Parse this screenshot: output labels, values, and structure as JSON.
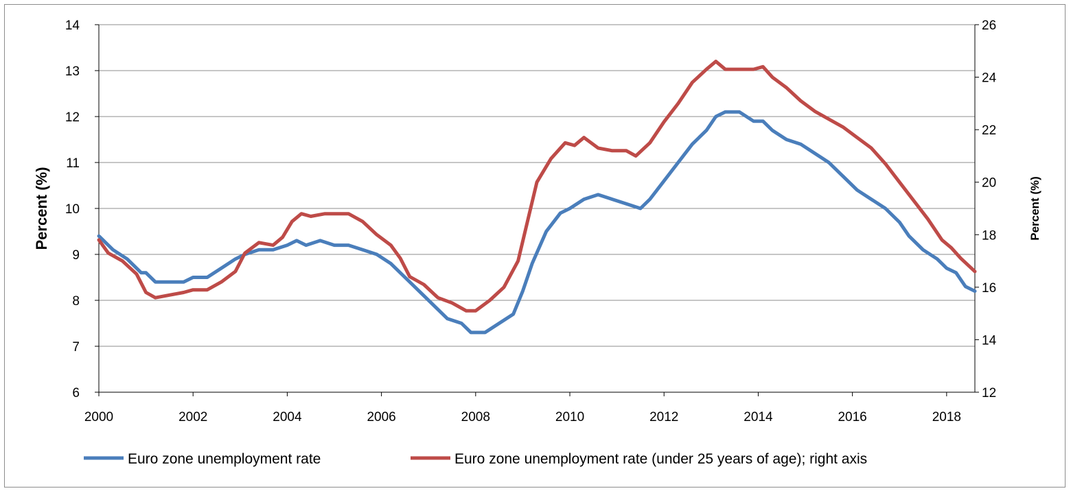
{
  "chart_data": {
    "type": "line",
    "title": "",
    "xlabel": "",
    "ylabel": "Percent (%)",
    "ylabel_right": "Percent (%)",
    "x_ticks": [
      "2000",
      "2002",
      "2004",
      "2006",
      "2008",
      "2010",
      "2012",
      "2014",
      "2016",
      "2018"
    ],
    "xlim": [
      2000,
      2018.6
    ],
    "ylim": [
      6,
      14
    ],
    "y_ticks": [
      "6",
      "7",
      "8",
      "9",
      "10",
      "11",
      "12",
      "13",
      "14"
    ],
    "ylim_right": [
      12,
      26
    ],
    "y_ticks_right": [
      "12",
      "14",
      "16",
      "18",
      "20",
      "22",
      "24",
      "26"
    ],
    "grid": true,
    "legend_position": "bottom",
    "series": [
      {
        "name": "Euro zone unemployment rate",
        "axis": "left",
        "color": "#4a7ebb",
        "x": [
          2000.0,
          2000.3,
          2000.6,
          2000.9,
          2001.0,
          2001.2,
          2001.5,
          2001.8,
          2002.0,
          2002.3,
          2002.6,
          2002.9,
          2003.1,
          2003.4,
          2003.7,
          2004.0,
          2004.2,
          2004.4,
          2004.7,
          2005.0,
          2005.3,
          2005.6,
          2005.9,
          2006.2,
          2006.5,
          2006.8,
          2007.1,
          2007.4,
          2007.7,
          2007.9,
          2008.2,
          2008.5,
          2008.8,
          2009.0,
          2009.2,
          2009.5,
          2009.8,
          2010.0,
          2010.3,
          2010.6,
          2010.9,
          2011.2,
          2011.5,
          2011.7,
          2012.0,
          2012.3,
          2012.6,
          2012.9,
          2013.1,
          2013.3,
          2013.6,
          2013.9,
          2014.1,
          2014.3,
          2014.6,
          2014.9,
          2015.2,
          2015.5,
          2015.8,
          2016.1,
          2016.4,
          2016.7,
          2017.0,
          2017.2,
          2017.5,
          2017.8,
          2018.0,
          2018.2,
          2018.4,
          2018.6
        ],
        "values": [
          9.4,
          9.1,
          8.9,
          8.6,
          8.6,
          8.4,
          8.4,
          8.4,
          8.5,
          8.5,
          8.7,
          8.9,
          9.0,
          9.1,
          9.1,
          9.2,
          9.3,
          9.2,
          9.3,
          9.2,
          9.2,
          9.1,
          9.0,
          8.8,
          8.5,
          8.2,
          7.9,
          7.6,
          7.5,
          7.3,
          7.3,
          7.5,
          7.7,
          8.2,
          8.8,
          9.5,
          9.9,
          10.0,
          10.2,
          10.3,
          10.2,
          10.1,
          10.0,
          10.2,
          10.6,
          11.0,
          11.4,
          11.7,
          12.0,
          12.1,
          12.1,
          11.9,
          11.9,
          11.7,
          11.5,
          11.4,
          11.2,
          11.0,
          10.7,
          10.4,
          10.2,
          10.0,
          9.7,
          9.4,
          9.1,
          8.9,
          8.7,
          8.6,
          8.3,
          8.2
        ]
      },
      {
        "name": "Euro zone unemployment rate (under 25 years of age); right axis",
        "axis": "right",
        "color": "#be4b48",
        "x": [
          2000.0,
          2000.2,
          2000.5,
          2000.8,
          2001.0,
          2001.2,
          2001.5,
          2001.8,
          2002.0,
          2002.3,
          2002.6,
          2002.9,
          2003.1,
          2003.4,
          2003.7,
          2003.9,
          2004.1,
          2004.3,
          2004.5,
          2004.8,
          2005.0,
          2005.3,
          2005.6,
          2005.9,
          2006.2,
          2006.4,
          2006.6,
          2006.9,
          2007.2,
          2007.5,
          2007.8,
          2008.0,
          2008.3,
          2008.6,
          2008.9,
          2009.1,
          2009.3,
          2009.6,
          2009.9,
          2010.1,
          2010.3,
          2010.6,
          2010.9,
          2011.2,
          2011.4,
          2011.7,
          2012.0,
          2012.3,
          2012.6,
          2012.9,
          2013.1,
          2013.3,
          2013.6,
          2013.9,
          2014.1,
          2014.3,
          2014.6,
          2014.9,
          2015.2,
          2015.5,
          2015.8,
          2016.1,
          2016.4,
          2016.7,
          2017.0,
          2017.3,
          2017.6,
          2017.9,
          2018.1,
          2018.3,
          2018.6
        ],
        "values": [
          17.8,
          17.3,
          17.0,
          16.5,
          15.8,
          15.6,
          15.7,
          15.8,
          15.9,
          15.9,
          16.2,
          16.6,
          17.3,
          17.7,
          17.6,
          17.9,
          18.5,
          18.8,
          18.7,
          18.8,
          18.8,
          18.8,
          18.5,
          18.0,
          17.6,
          17.1,
          16.4,
          16.1,
          15.6,
          15.4,
          15.1,
          15.1,
          15.5,
          16.0,
          17.0,
          18.5,
          20.0,
          20.9,
          21.5,
          21.4,
          21.7,
          21.3,
          21.2,
          21.2,
          21.0,
          21.5,
          22.3,
          23.0,
          23.8,
          24.3,
          24.6,
          24.3,
          24.3,
          24.3,
          24.4,
          24.0,
          23.6,
          23.1,
          22.7,
          22.4,
          22.1,
          21.7,
          21.3,
          20.7,
          20.0,
          19.3,
          18.6,
          17.8,
          17.5,
          17.1,
          16.6
        ]
      }
    ]
  }
}
